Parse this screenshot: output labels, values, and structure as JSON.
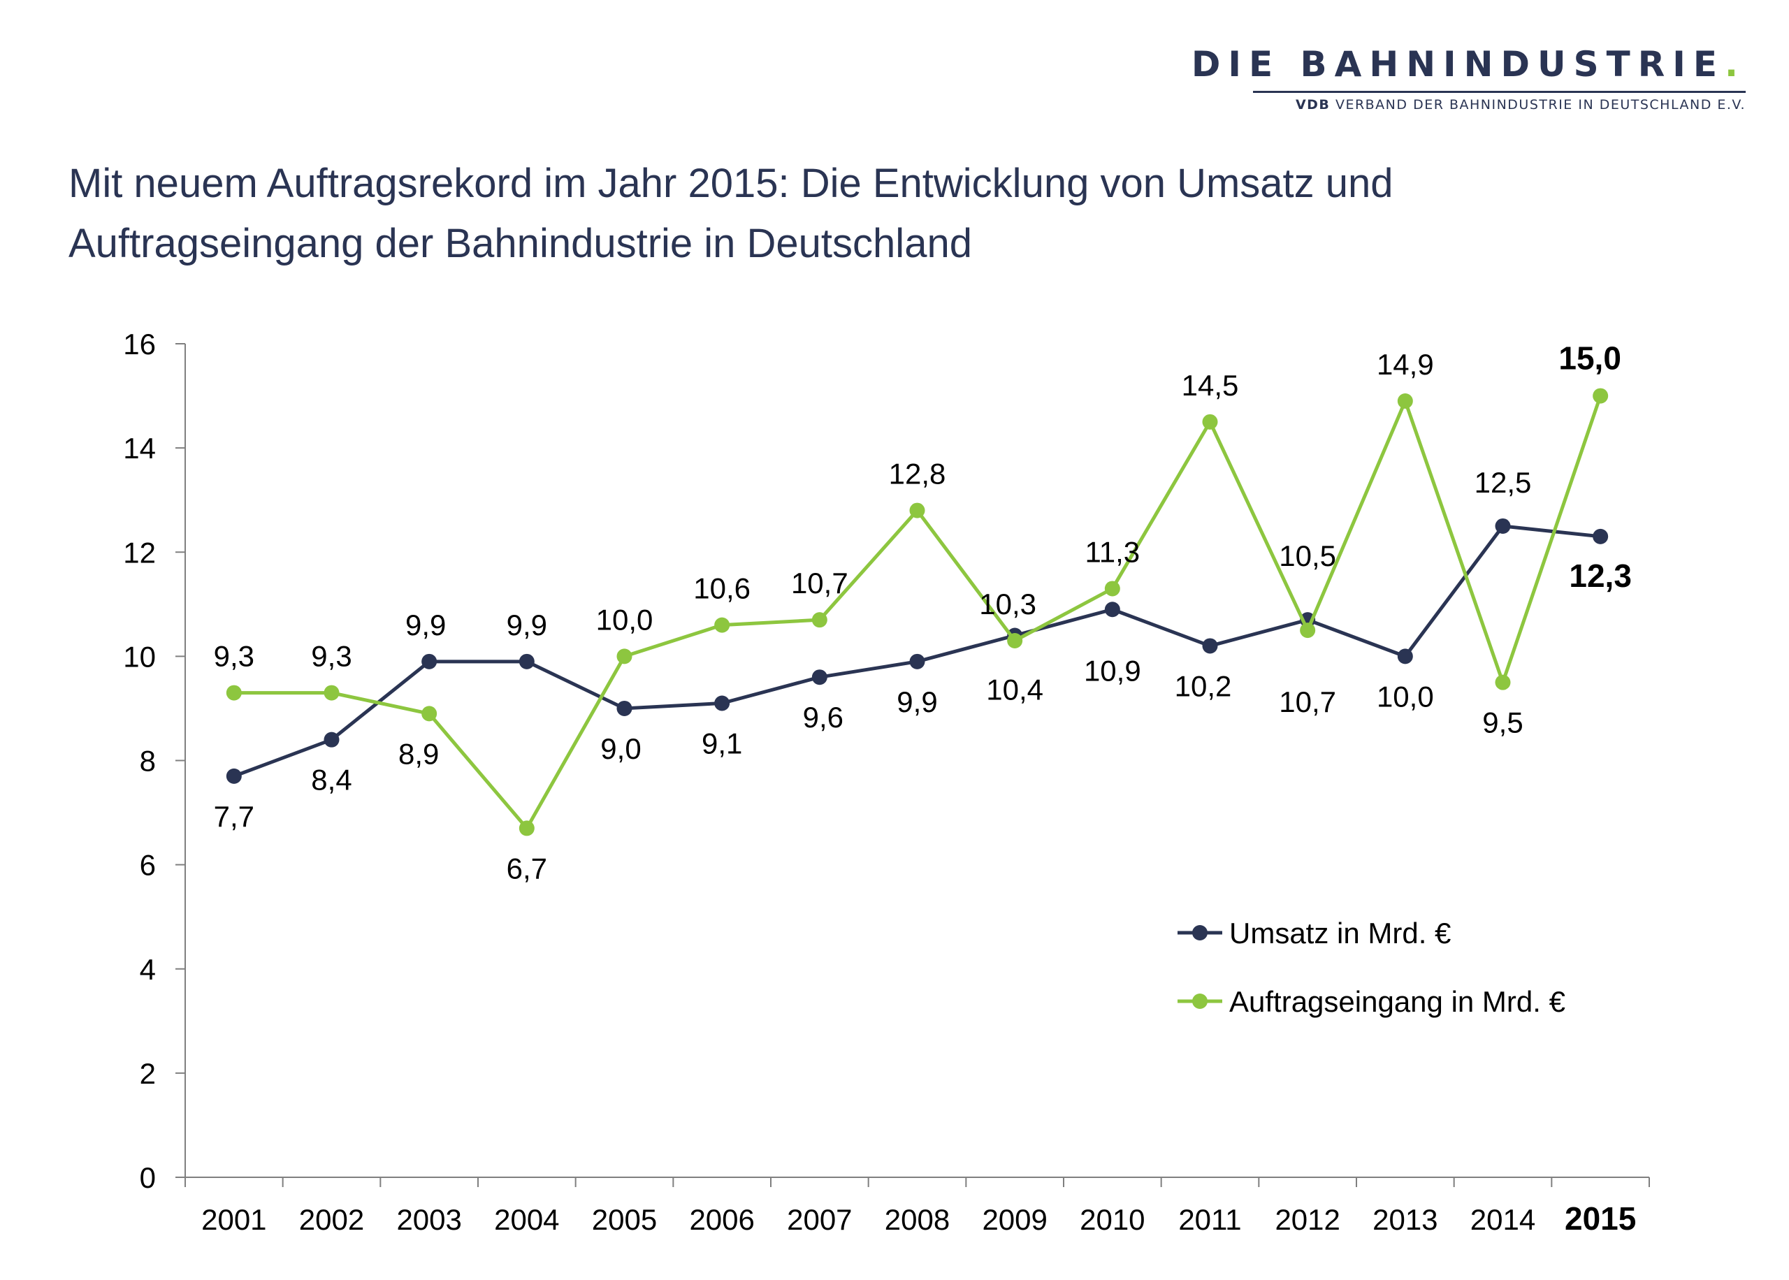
{
  "brand": {
    "name": "DIE BAHNINDUSTRIE",
    "name_dot": ".",
    "sub_bold": "VDB",
    "sub_rest": " VERBAND DER BAHNINDUSTRIE IN DEUTSCHLAND E.V."
  },
  "title": {
    "line1": "Mit neuem Auftragsrekord im Jahr 2015: Die Entwicklung von Umsatz und",
    "line2": "Auftragseingang der Bahnindustrie in Deutschland"
  },
  "chart_data": {
    "type": "line",
    "categories": [
      "2001",
      "2002",
      "2003",
      "2004",
      "2005",
      "2006",
      "2007",
      "2008",
      "2009",
      "2010",
      "2011",
      "2012",
      "2013",
      "2014",
      "2015"
    ],
    "highlighted_category": "2015",
    "ylim": [
      0,
      16
    ],
    "yticks": [
      0,
      2,
      4,
      6,
      8,
      10,
      12,
      14,
      16
    ],
    "grid": false,
    "legend_position": "bottom-right",
    "series": [
      {
        "name": "Umsatz in Mrd. €",
        "color": "#2a3453",
        "values": [
          7.7,
          8.4,
          9.9,
          9.9,
          9.0,
          9.1,
          9.6,
          9.9,
          10.4,
          10.9,
          10.2,
          10.7,
          10.0,
          12.5,
          12.3
        ],
        "labels": [
          "7,7",
          "8,4",
          "9,9",
          "9,9",
          "9,0",
          "9,1",
          "9,6",
          "9,9",
          "10,4",
          "10,9",
          "10,2",
          "10,7",
          "10,0",
          "12,5",
          "12,3"
        ]
      },
      {
        "name": "Auftragseingang in Mrd. €",
        "color": "#8dc63f",
        "values": [
          9.3,
          9.3,
          8.9,
          6.7,
          10.0,
          10.6,
          10.7,
          12.8,
          10.3,
          11.3,
          14.5,
          10.5,
          14.9,
          9.5,
          15.0
        ],
        "labels": [
          "9,3",
          "9,3",
          "8,9",
          "6,7",
          "10,0",
          "10,6",
          "10,7",
          "12,8",
          "10,3",
          "11,3",
          "14,5",
          "10,5",
          "14,9",
          "9,5",
          "15,0"
        ]
      }
    ]
  }
}
